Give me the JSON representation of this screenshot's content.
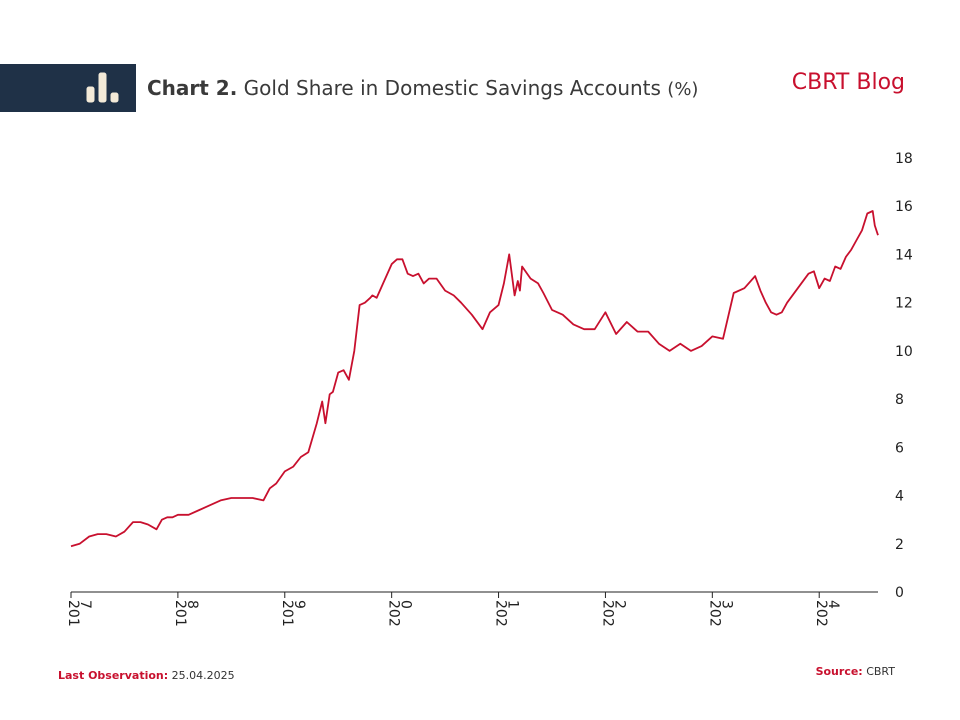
{
  "header": {
    "title_bold": "Chart 2.",
    "title_text": "Gold Share in Domestic Savings Accounts",
    "title_unit": "(%)",
    "brand": "CBRT Blog",
    "icon": "bar-chart-icon"
  },
  "colors": {
    "band": "#1f3147",
    "line": "#c8102e",
    "brand": "#c8102e",
    "text": "#333333"
  },
  "footer": {
    "last_obs_label": "Last Observation:",
    "last_obs_value": "25.04.2025",
    "source_label": "Source:",
    "source_value": "CBRT"
  },
  "chart_data": {
    "type": "line",
    "title": "Chart 2. Gold Share in Domestic Savings Accounts (%)",
    "y_axis_side": "right",
    "ylim": [
      0,
      18
    ],
    "yticks": [
      0,
      2,
      4,
      6,
      8,
      10,
      12,
      14,
      16,
      18
    ],
    "xlim": [
      2017.0,
      2024.55
    ],
    "xticks": [
      {
        "value": 2017,
        "line1": "201",
        "line2": "7"
      },
      {
        "value": 2018,
        "line1": "201",
        "line2": "8"
      },
      {
        "value": 2019,
        "line1": "201",
        "line2": "9"
      },
      {
        "value": 2020,
        "line1": "202",
        "line2": "0"
      },
      {
        "value": 2021,
        "line1": "202",
        "line2": "1"
      },
      {
        "value": 2022,
        "line1": "202",
        "line2": "2"
      },
      {
        "value": 2023,
        "line1": "202",
        "line2": "3"
      },
      {
        "value": 2024,
        "line1": "202",
        "line2": "4"
      }
    ],
    "grid": false,
    "series": [
      {
        "x": [
          2017.0,
          2017.08,
          2017.17,
          2017.25,
          2017.33,
          2017.42,
          2017.5,
          2017.58,
          2017.65,
          2017.72,
          2017.8,
          2017.85,
          2017.9,
          2017.95,
          2018.0,
          2018.1,
          2018.2,
          2018.3,
          2018.4,
          2018.5,
          2018.6,
          2018.7,
          2018.8,
          2018.86,
          2018.92,
          2019.0,
          2019.08,
          2019.15,
          2019.22,
          2019.3,
          2019.35,
          2019.38,
          2019.42,
          2019.45,
          2019.5,
          2019.55,
          2019.6,
          2019.65,
          2019.7,
          2019.75,
          2019.8,
          2019.82,
          2019.86,
          2019.92,
          2020.0,
          2020.05,
          2020.1,
          2020.15,
          2020.2,
          2020.25,
          2020.3,
          2020.35,
          2020.42,
          2020.5,
          2020.58,
          2020.65,
          2020.75,
          2020.85,
          2020.92,
          2021.0,
          2021.05,
          2021.1,
          2021.15,
          2021.18,
          2021.2,
          2021.22,
          2021.3,
          2021.37,
          2021.42,
          2021.5,
          2021.6,
          2021.7,
          2021.8,
          2021.9,
          2022.0,
          2022.1,
          2022.2,
          2022.3,
          2022.4,
          2022.5,
          2022.6,
          2022.7,
          2022.8,
          2022.9,
          2023.0,
          2023.1,
          2023.2,
          2023.3,
          2023.4,
          2023.45,
          2023.5,
          2023.55,
          2023.6,
          2023.65,
          2023.7,
          2023.8,
          2023.9,
          2023.95,
          2024.0,
          2024.05,
          2024.1,
          2024.15,
          2024.2,
          2024.25,
          2024.3,
          2024.35,
          2024.4,
          2024.45,
          2024.5,
          2024.52,
          2024.55
        ],
        "values": [
          1.9,
          2.0,
          2.3,
          2.4,
          2.4,
          2.3,
          2.5,
          2.9,
          2.9,
          2.8,
          2.6,
          3.0,
          3.1,
          3.1,
          3.2,
          3.2,
          3.4,
          3.6,
          3.8,
          3.9,
          3.9,
          3.9,
          3.8,
          4.3,
          4.5,
          5.0,
          5.2,
          5.6,
          5.8,
          7.0,
          7.9,
          7.0,
          8.2,
          8.3,
          9.1,
          9.2,
          8.8,
          10.0,
          11.9,
          12.0,
          12.2,
          12.3,
          12.2,
          12.8,
          13.6,
          13.8,
          13.8,
          13.2,
          13.1,
          13.2,
          12.8,
          13.0,
          13.0,
          12.5,
          12.3,
          12.0,
          11.5,
          10.9,
          11.6,
          11.9,
          12.8,
          14.0,
          12.3,
          12.9,
          12.5,
          13.5,
          13.0,
          12.8,
          12.4,
          11.7,
          11.5,
          11.1,
          10.9,
          10.9,
          11.6,
          10.7,
          11.2,
          10.8,
          10.8,
          10.3,
          10.0,
          10.3,
          10.0,
          10.2,
          10.6,
          10.5,
          12.4,
          12.6,
          13.1,
          12.5,
          12.0,
          11.6,
          11.5,
          11.6,
          12.0,
          12.6,
          13.2,
          13.3,
          12.6,
          13.0,
          12.9,
          13.5,
          13.4,
          13.9,
          14.2,
          14.6,
          15.0,
          15.7,
          15.8,
          15.2,
          14.8
        ]
      }
    ]
  }
}
